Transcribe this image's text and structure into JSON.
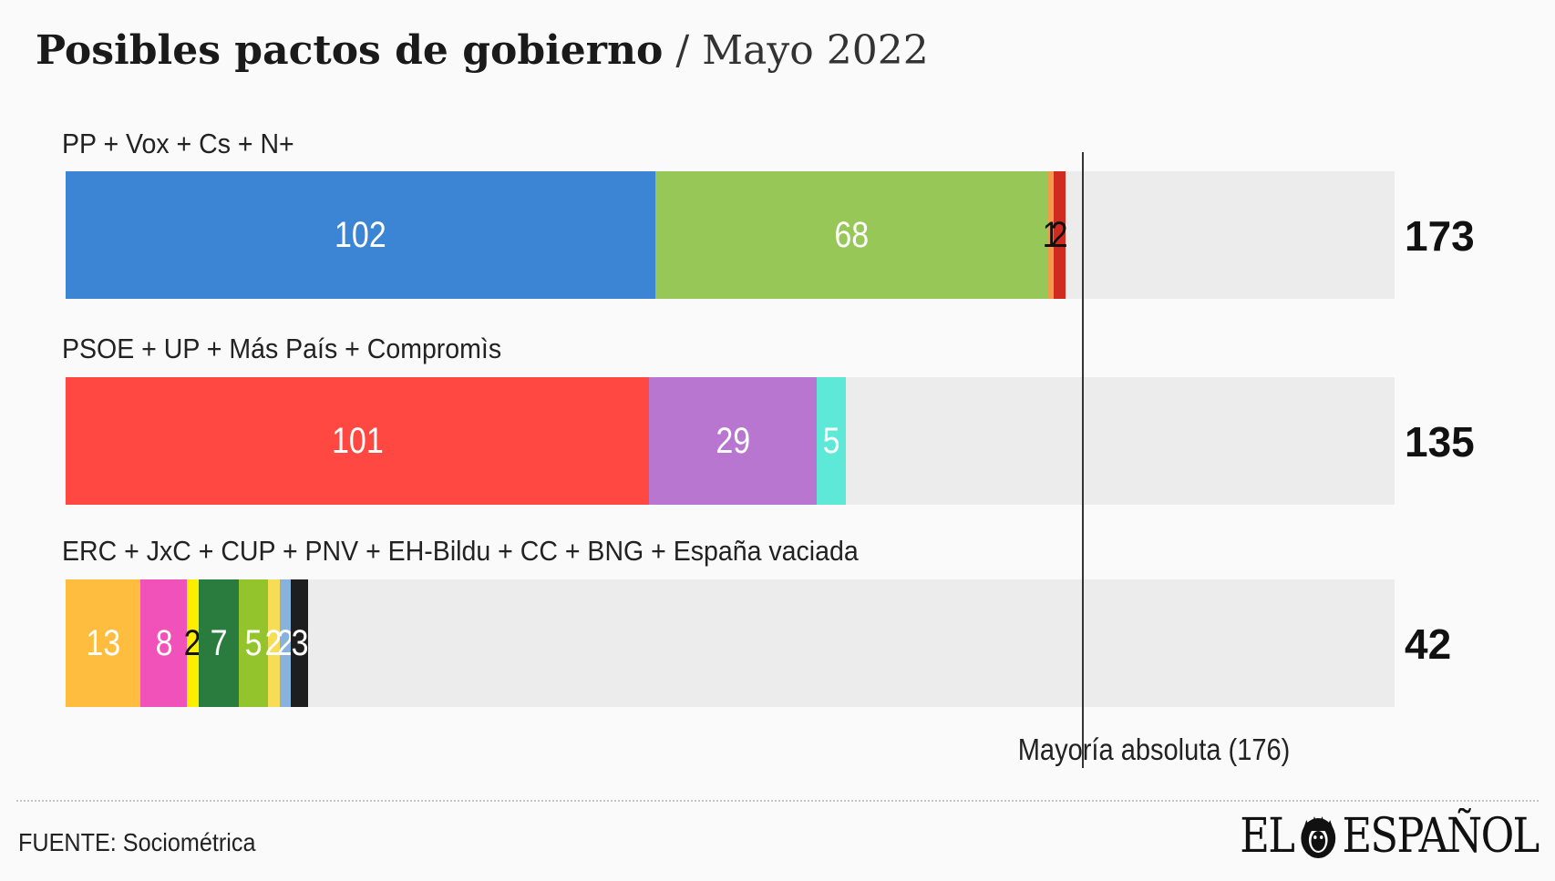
{
  "title": {
    "main": "Posibles pactos de gobierno",
    "separator": " / ",
    "sub": "Mayo 2022"
  },
  "source": "FUENTE: Sociométrica",
  "logo": {
    "left": "EL",
    "right": "ESPAÑOL"
  },
  "colors": {
    "background": "#fafafa",
    "track": "#ececec",
    "majority_line": "#333333"
  },
  "chart_data": {
    "type": "bar",
    "orientation": "horizontal",
    "stacked": true,
    "xlim": [
      0,
      230
    ],
    "majority": {
      "value": 176,
      "label": "Mayoría absoluta (176)"
    },
    "bars": [
      {
        "label": "PP + Vox + Cs + N+",
        "total": 173,
        "segments": [
          {
            "party": "PP",
            "value": 102,
            "color": "#3b85d4",
            "text_color": "#ffffff"
          },
          {
            "party": "Vox",
            "value": 68,
            "color": "#97c757",
            "text_color": "#ffffff"
          },
          {
            "party": "Cs",
            "value": 1,
            "color": "#f39a4b",
            "text_color": "#111111"
          },
          {
            "party": "N+",
            "value": 2,
            "color": "#cf2b20",
            "text_color": "#111111"
          }
        ]
      },
      {
        "label": "PSOE + UP + Más País + Compromìs",
        "total": 135,
        "segments": [
          {
            "party": "PSOE",
            "value": 101,
            "color": "#ff4842",
            "text_color": "#ffffff"
          },
          {
            "party": "UP",
            "value": 29,
            "color": "#b876d0",
            "text_color": "#ffffff"
          },
          {
            "party": "Más País",
            "value": 5,
            "color": "#5de8d7",
            "text_color": "#ffffff"
          }
        ]
      },
      {
        "label": "ERC + JxC + CUP + PNV + EH-Bildu + CC + BNG + España vaciada",
        "total": 42,
        "segments": [
          {
            "party": "ERC",
            "value": 13,
            "color": "#ffbd40",
            "text_color": "#ffffff"
          },
          {
            "party": "JxC",
            "value": 8,
            "color": "#f152b9",
            "text_color": "#ffffff"
          },
          {
            "party": "CUP",
            "value": 2,
            "color": "#ffee00",
            "text_color": "#111111"
          },
          {
            "party": "PNV",
            "value": 7,
            "color": "#2a7c3e",
            "text_color": "#ffffff"
          },
          {
            "party": "EH-Bildu",
            "value": 5,
            "color": "#94c42c",
            "text_color": "#ffffff"
          },
          {
            "party": "CC",
            "value": 2,
            "color": "#f7dc56",
            "text_color": "#ffffff"
          },
          {
            "party": "BNG",
            "value": 2,
            "color": "#86b2dc",
            "text_color": "#ffffff"
          },
          {
            "party": "España vaciada",
            "value": 3,
            "color": "#1e1e1e",
            "text_color": "#ffffff"
          }
        ]
      }
    ]
  }
}
